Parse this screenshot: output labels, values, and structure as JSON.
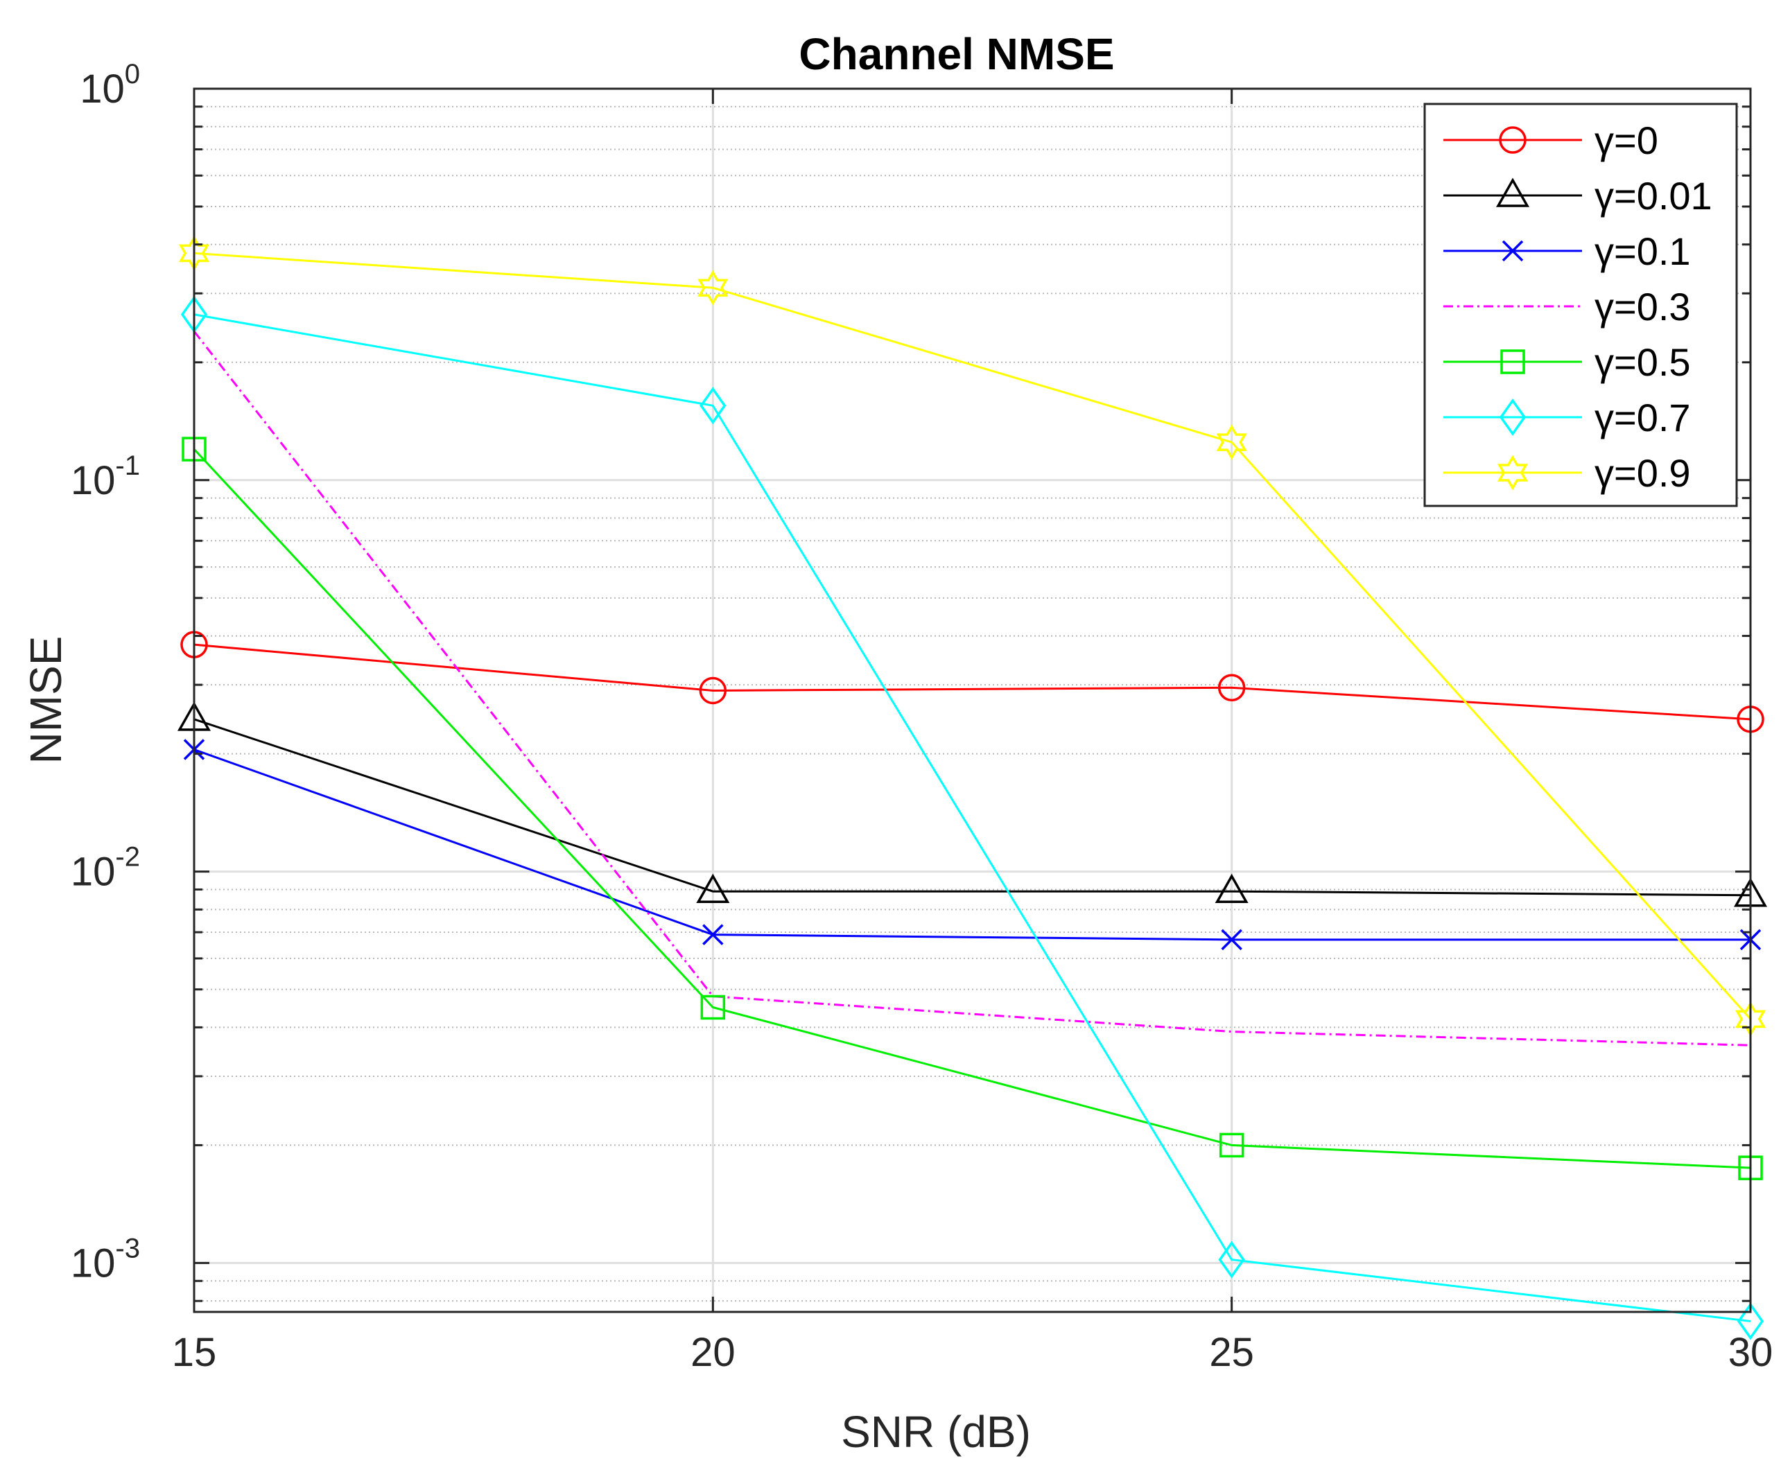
{
  "chart_data": {
    "type": "line",
    "title": "Channel NMSE",
    "xlabel": "SNR (dB)",
    "ylabel": "NMSE",
    "yscale": "log",
    "x": [
      15,
      20,
      25,
      30
    ],
    "xlim": [
      15,
      30
    ],
    "ylim": [
      0.00075,
      1
    ],
    "xticks": [
      15,
      20,
      25,
      30
    ],
    "xtick_labels": [
      "15",
      "20",
      "25",
      "30"
    ],
    "yticks": [
      {
        "value": 1,
        "base": "10",
        "exp": "0"
      },
      {
        "value": 0.1,
        "base": "10",
        "exp": "-1"
      },
      {
        "value": 0.01,
        "base": "10",
        "exp": "-2"
      },
      {
        "value": 0.001,
        "base": "10",
        "exp": "-3"
      }
    ],
    "grid": true,
    "minor_grid": true,
    "legend_position": "top-right",
    "series": [
      {
        "name": "γ=0",
        "color": "#ff0000",
        "marker": "circle",
        "dash": "solid",
        "values": [
          0.038,
          0.029,
          0.0295,
          0.0245
        ]
      },
      {
        "name": "γ=0.01",
        "color": "#000000",
        "marker": "triangle",
        "dash": "solid",
        "values": [
          0.0245,
          0.0089,
          0.0089,
          0.0087
        ]
      },
      {
        "name": "γ=0.1",
        "color": "#0000ff",
        "marker": "x",
        "dash": "solid",
        "values": [
          0.0205,
          0.0069,
          0.0067,
          0.0067
        ]
      },
      {
        "name": "γ=0.3",
        "color": "#ff00ff",
        "marker": "none",
        "dash": "dashdot",
        "values": [
          0.24,
          0.0048,
          0.0039,
          0.0036
        ]
      },
      {
        "name": "γ=0.5",
        "color": "#00ee00",
        "marker": "square",
        "dash": "solid",
        "values": [
          0.12,
          0.0045,
          0.002,
          0.00175
        ]
      },
      {
        "name": "γ=0.7",
        "color": "#00ffff",
        "marker": "diamond",
        "dash": "solid",
        "values": [
          0.265,
          0.155,
          0.00102,
          0.00071
        ]
      },
      {
        "name": "γ=0.9",
        "color": "#ffff00",
        "marker": "hexagram",
        "dash": "solid",
        "values": [
          0.38,
          0.31,
          0.125,
          0.0042
        ]
      }
    ]
  }
}
